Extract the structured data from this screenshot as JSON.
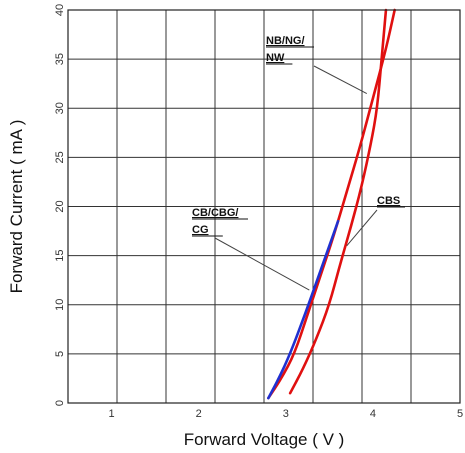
{
  "chart_data": {
    "type": "line",
    "title": "",
    "xlabel": "Forward Voltage ( V )",
    "ylabel": "Forward Current ( mA )",
    "xlim": [
      0.5,
      5
    ],
    "ylim": [
      0,
      40
    ],
    "x_ticks": [
      1,
      2,
      3,
      4,
      5
    ],
    "y_ticks": [
      0,
      5,
      10,
      15,
      20,
      25,
      30,
      35,
      40
    ],
    "x_tick_labels": [
      "1",
      "2",
      "3",
      "4",
      "5"
    ],
    "y_tick_labels": [
      "0",
      "5",
      "10",
      "15",
      "20",
      "25",
      "30",
      "35",
      "40"
    ],
    "grid": true,
    "series": [
      {
        "color": "#e01010",
        "points": [
          [
            2.8,
            0.5
          ],
          [
            2.95,
            2.5
          ],
          [
            3.1,
            5
          ],
          [
            3.25,
            9
          ],
          [
            3.4,
            13
          ],
          [
            3.55,
            17
          ],
          [
            3.7,
            21.5
          ],
          [
            3.85,
            26
          ],
          [
            4.0,
            31
          ],
          [
            4.15,
            36
          ],
          [
            4.25,
            40
          ]
        ]
      },
      {
        "color": "#2030d0",
        "points": [
          [
            2.8,
            0.5
          ],
          [
            2.92,
            2.5
          ],
          [
            3.05,
            5
          ],
          [
            3.22,
            9
          ],
          [
            3.38,
            13
          ],
          [
            3.5,
            16
          ],
          [
            3.6,
            18.5
          ]
        ]
      },
      {
        "color": "#e01010",
        "points": [
          [
            3.05,
            1
          ],
          [
            3.2,
            3.5
          ],
          [
            3.35,
            6.5
          ],
          [
            3.5,
            10
          ],
          [
            3.62,
            14
          ],
          [
            3.75,
            18
          ],
          [
            3.87,
            22
          ],
          [
            3.98,
            26.5
          ],
          [
            4.05,
            30
          ],
          [
            4.1,
            35
          ],
          [
            4.15,
            40
          ]
        ]
      }
    ],
    "annotations": [
      {
        "lines": [
          "NB/NG/",
          "NW"
        ],
        "target": [
          3.93,
          31.5
        ]
      },
      {
        "lines": [
          "CB/CBG/",
          "CG"
        ],
        "target": [
          3.27,
          11.5
        ]
      },
      {
        "lines": [
          "CBS"
        ],
        "target": [
          3.7,
          16
        ]
      }
    ]
  }
}
